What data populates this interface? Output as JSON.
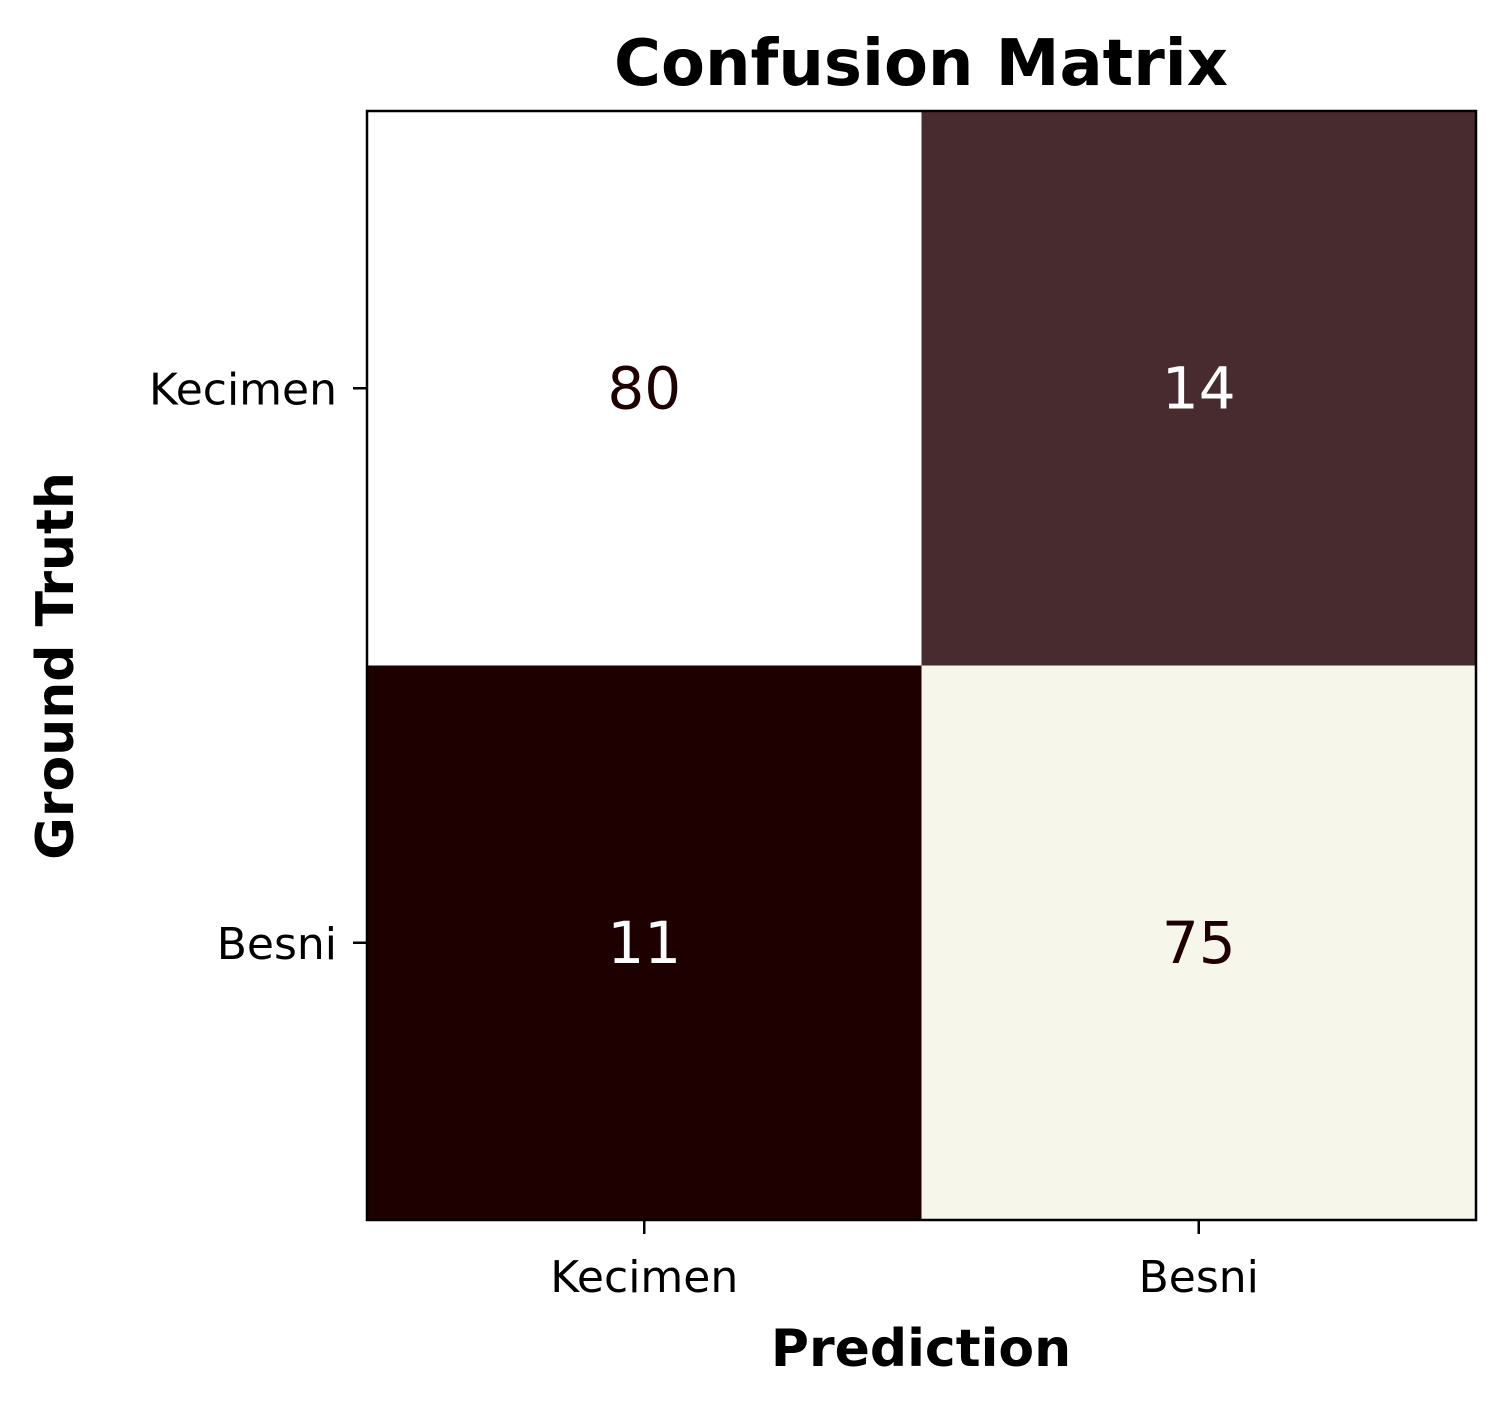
{
  "chart_data": {
    "type": "heatmap",
    "title": "Confusion Matrix",
    "xlabel": "Prediction",
    "ylabel": "Ground Truth",
    "x_categories": [
      "Kecimen",
      "Besni"
    ],
    "y_categories": [
      "Kecimen",
      "Besni"
    ],
    "values": [
      [
        80,
        14
      ],
      [
        11,
        75
      ]
    ],
    "cell_colors": [
      [
        "#ffffff",
        "#482b2e"
      ],
      [
        "#1f0001",
        "#f6f6ea"
      ]
    ],
    "value_text_colors": [
      [
        "#1f0001",
        "#ffffff"
      ],
      [
        "#ffffff",
        "#1f0001"
      ]
    ],
    "grid": false
  }
}
